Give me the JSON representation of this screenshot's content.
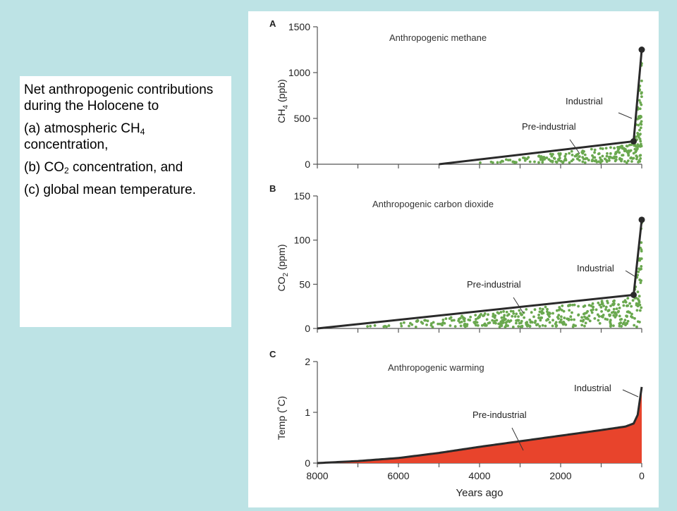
{
  "caption": {
    "intro": "Net anthropogenic contributions during the Holocene to",
    "item_a_prefix": "(a) atmospheric CH",
    "item_a_sub": "4",
    "item_a_suffix": "concentration,",
    "item_b_prefix": "(b) CO",
    "item_b_sub": "2",
    "item_b_suffix": " concentration, and",
    "item_c": "(c) global mean temperature."
  },
  "colors": {
    "background": "#bde3e5",
    "line": "#2a2a2a",
    "stipple": "#6aa84f",
    "warming_fill": "#e8442c"
  },
  "chart_data": [
    {
      "panel": "A",
      "type": "area",
      "fill_style": "stippled",
      "title": "Anthropogenic methane",
      "ylabel_main": "CH",
      "ylabel_sub": "4",
      "ylabel_suffix": " (ppb)",
      "ylim": [
        0,
        1500
      ],
      "yticks": [
        "0",
        "500",
        "1000",
        "1500"
      ],
      "xlim": [
        8000,
        0
      ],
      "annotations": [
        "Industrial",
        "Pre-industrial"
      ],
      "series": [
        {
          "x": [
            5000,
            200,
            0
          ],
          "values": [
            0,
            250,
            1250
          ]
        }
      ],
      "markers": [
        {
          "x": 200,
          "y": 250
        },
        {
          "x": 0,
          "y": 1250
        }
      ]
    },
    {
      "panel": "B",
      "type": "area",
      "fill_style": "stippled",
      "title": "Anthropogenic carbon dioxide",
      "ylabel_main": "CO",
      "ylabel_sub": "2",
      "ylabel_suffix": " (ppm)",
      "ylim": [
        0,
        150
      ],
      "yticks": [
        "0",
        "50",
        "100",
        "150"
      ],
      "xlim": [
        8000,
        0
      ],
      "annotations": [
        "Industrial",
        "Pre-industrial"
      ],
      "series": [
        {
          "x": [
            8000,
            200,
            0
          ],
          "values": [
            0,
            38,
            123
          ]
        }
      ],
      "markers": [
        {
          "x": 200,
          "y": 38
        },
        {
          "x": 0,
          "y": 123
        }
      ]
    },
    {
      "panel": "C",
      "type": "area",
      "fill_style": "solid",
      "title": "Anthropogenic warming",
      "ylabel_main": "Temp (˚C)",
      "ylabel_sub": "",
      "ylabel_suffix": "",
      "ylim": [
        0,
        2
      ],
      "yticks": [
        "0",
        "1",
        "2"
      ],
      "xlim": [
        8000,
        0
      ],
      "xticks": [
        "8000",
        "6000",
        "4000",
        "2000",
        "0"
      ],
      "xlabel": "Years ago",
      "annotations": [
        "Industrial",
        "Pre-industrial"
      ],
      "series": [
        {
          "x": [
            8000,
            7000,
            6000,
            5000,
            4000,
            3000,
            2000,
            1000,
            400,
            200,
            100,
            0
          ],
          "values": [
            0,
            0.04,
            0.1,
            0.2,
            0.32,
            0.43,
            0.54,
            0.65,
            0.72,
            0.78,
            0.95,
            1.5
          ]
        }
      ]
    }
  ]
}
